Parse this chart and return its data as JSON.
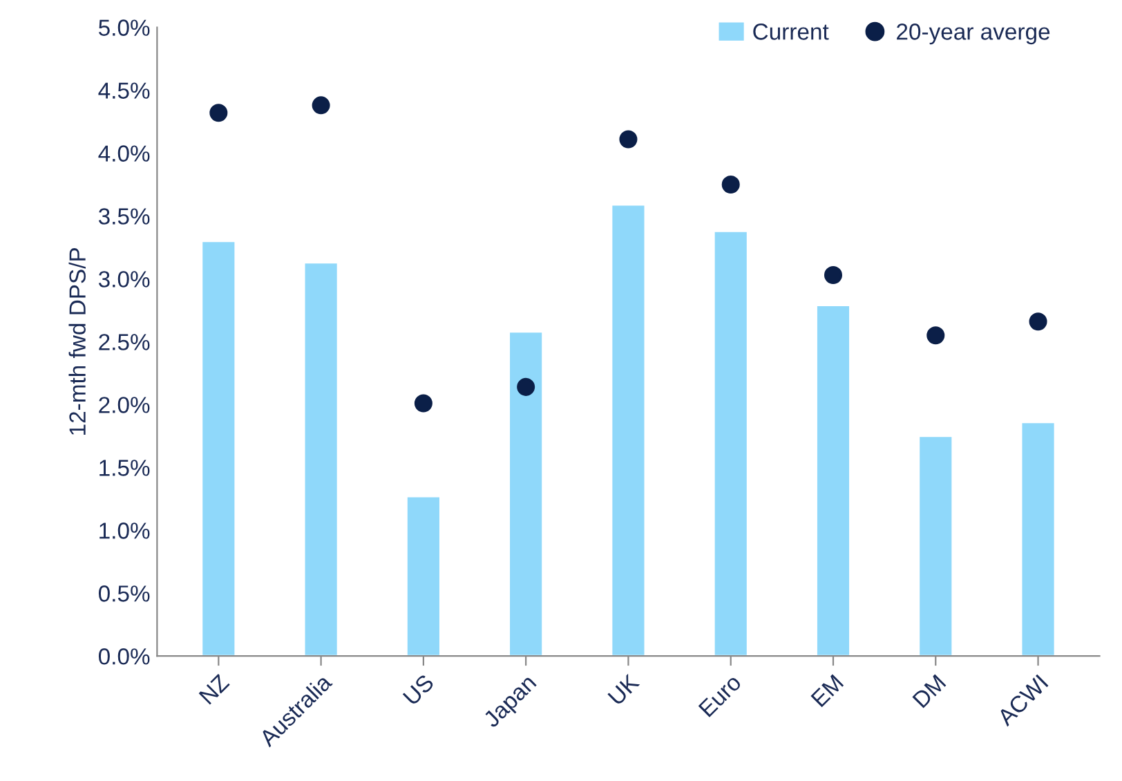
{
  "chart_data": {
    "type": "bar",
    "ylabel": "12-mth fwd DPS/P",
    "categories": [
      "NZ",
      "Australia",
      "US",
      "Japan",
      "UK",
      "Euro",
      "EM",
      "DM",
      "ACWI"
    ],
    "series": [
      {
        "name": "Current",
        "color": "#8fd8fa",
        "values": [
          3.3,
          3.13,
          1.27,
          2.58,
          3.59,
          3.38,
          2.79,
          1.75,
          1.86
        ]
      },
      {
        "name": "20-year averge",
        "type": "scatter",
        "color": "#0b1f48",
        "marker": "circle",
        "x": [
          "NZ",
          "Australia",
          "US",
          "Japan",
          "UK",
          "Euro",
          "EM",
          "DM",
          "ACWI"
        ],
        "values": [
          4.32,
          4.38,
          2.01,
          2.14,
          4.11,
          3.75,
          3.03,
          2.55,
          2.66
        ]
      }
    ],
    "ylim": [
      0,
      5
    ],
    "yticks": [
      {
        "value": 0,
        "label": "0.0%"
      },
      {
        "value": 0.5,
        "label": "0.5%"
      },
      {
        "value": 1,
        "label": "1.0%"
      },
      {
        "value": 1.5,
        "label": "1.5%"
      },
      {
        "value": 2,
        "label": "2.0%"
      },
      {
        "value": 2.5,
        "label": "2.5%"
      },
      {
        "value": 3,
        "label": "3.0%"
      },
      {
        "value": 3.5,
        "label": "3.5%"
      },
      {
        "value": 4,
        "label": "4.0%"
      },
      {
        "value": 4.5,
        "label": "4.5%"
      },
      {
        "value": 5,
        "label": "5.0%"
      }
    ],
    "grid": false,
    "legend": "top right"
  }
}
